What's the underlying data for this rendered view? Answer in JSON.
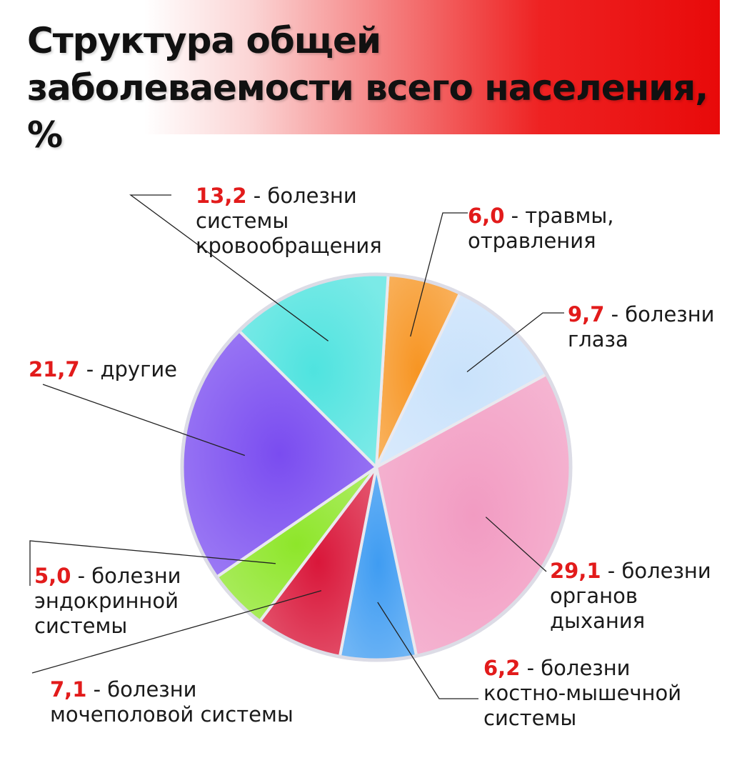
{
  "title": "Структура общей заболеваемости всего населения, %",
  "chart_data": {
    "type": "pie",
    "title": "Структура общей заболеваемости всего населения, %",
    "unit": "%",
    "slices": [
      {
        "value": 6.0,
        "value_text": "6,0",
        "label": "- травмы,",
        "label2": "отравления",
        "label3": "",
        "color": "#f79523"
      },
      {
        "value": 9.7,
        "value_text": "9,7",
        "label": "- болезни",
        "label2": "глаза",
        "label3": "",
        "color": "#c9e2fb"
      },
      {
        "value": 29.1,
        "value_text": "29,1",
        "label": "- болезни",
        "label2": "органов",
        "label3": "дыхания",
        "color": "#f29bc2"
      },
      {
        "value": 6.2,
        "value_text": "6,2",
        "label": "- болезни",
        "label2": "костно-мышечной",
        "label3": "системы",
        "color": "#3f9cf2"
      },
      {
        "value": 7.1,
        "value_text": "7,1",
        "label": "- болезни",
        "label2": "мочеполовой системы",
        "label3": "",
        "color": "#d9173a"
      },
      {
        "value": 5.0,
        "value_text": "5,0",
        "label": "- болезни",
        "label2": "эндокринной",
        "label3": "системы",
        "color": "#8ee62a"
      },
      {
        "value": 21.7,
        "value_text": "21,7",
        "label": "- другие",
        "label2": "",
        "label3": "",
        "color": "#7a4cf0"
      },
      {
        "value": 13.2,
        "value_text": "13,2",
        "label": "- болезни",
        "label2": "системы",
        "label3": "кровообращения",
        "color": "#4fe3df"
      }
    ]
  }
}
